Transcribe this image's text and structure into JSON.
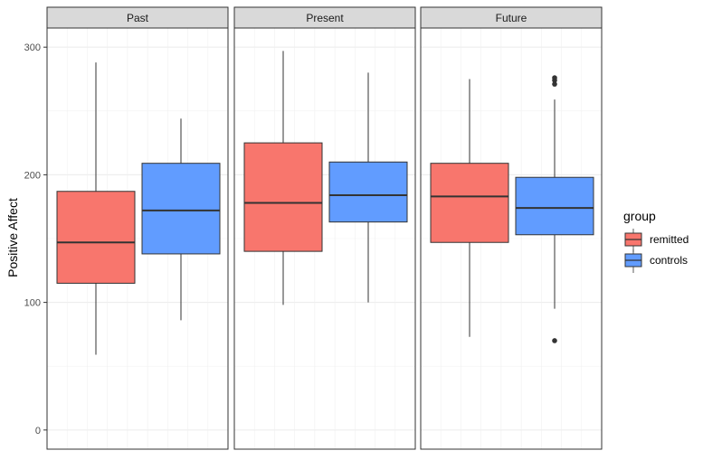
{
  "chart_data": {
    "type": "boxplot",
    "ylabel": "Positive Affect",
    "ylim": [
      -15,
      315
    ],
    "y_ticks": [
      0,
      100,
      200,
      300
    ],
    "facets": [
      "Past",
      "Present",
      "Future"
    ],
    "legend": {
      "title": "group",
      "placement": "right",
      "items": [
        {
          "label": "remitted",
          "color": "#F8766D"
        },
        {
          "label": "controls",
          "color": "#619CFF"
        }
      ]
    },
    "grid": true,
    "series": [
      {
        "name": "remitted",
        "color": "#F8766D",
        "boxes": [
          {
            "facet": "Past",
            "whisker_low": 59,
            "q1": 115,
            "median": 147,
            "q3": 187,
            "whisker_high": 288,
            "outliers": []
          },
          {
            "facet": "Present",
            "whisker_low": 98,
            "q1": 140,
            "median": 178,
            "q3": 225,
            "whisker_high": 297,
            "outliers": []
          },
          {
            "facet": "Future",
            "whisker_low": 73,
            "q1": 147,
            "median": 183,
            "q3": 209,
            "whisker_high": 275,
            "outliers": []
          }
        ]
      },
      {
        "name": "controls",
        "color": "#619CFF",
        "boxes": [
          {
            "facet": "Past",
            "whisker_low": 86,
            "q1": 138,
            "median": 172,
            "q3": 209,
            "whisker_high": 244,
            "outliers": []
          },
          {
            "facet": "Present",
            "whisker_low": 100,
            "q1": 163,
            "median": 184,
            "q3": 210,
            "whisker_high": 280,
            "outliers": []
          },
          {
            "facet": "Future",
            "whisker_low": 95,
            "q1": 153,
            "median": 174,
            "q3": 198,
            "whisker_high": 259,
            "outliers": [
              70,
              271,
              274,
              276
            ]
          }
        ]
      }
    ]
  }
}
